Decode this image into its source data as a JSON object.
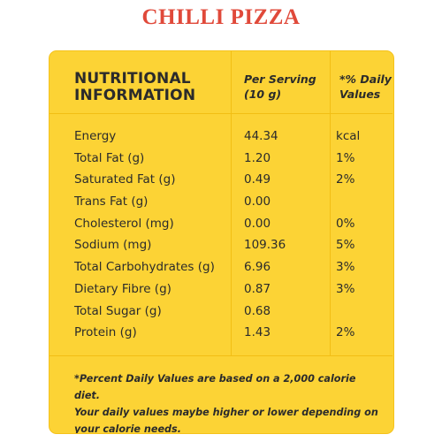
{
  "title": "CHILLI PIZZA",
  "colors": {
    "title": "#e0493a",
    "panel": "#fcd335",
    "divider": "#f2be14",
    "text": "#2b2b2b"
  },
  "table": {
    "header": {
      "nutrition_line1": "NUTRITIONAL",
      "nutrition_line2": "INFORMATION",
      "per_serving_line1": "Per Serving",
      "per_serving_line2": "(10 g)",
      "daily_line1": "*% Daily",
      "daily_line2": "Values"
    },
    "rows": [
      {
        "name": "Energy",
        "value": "44.34",
        "daily": "kcal"
      },
      {
        "name": "Total Fat (g)",
        "value": "1.20",
        "daily": "1%"
      },
      {
        "name": "Saturated Fat (g)",
        "value": "0.49",
        "daily": "2%"
      },
      {
        "name": "Trans Fat (g)",
        "value": "0.00",
        "daily": ""
      },
      {
        "name": "Cholesterol (mg)",
        "value": "0.00",
        "daily": "0%"
      },
      {
        "name": "Sodium (mg)",
        "value": "109.36",
        "daily": "5%"
      },
      {
        "name": "Total Carbohydrates (g)",
        "value": "6.96",
        "daily": "3%"
      },
      {
        "name": "Dietary Fibre (g)",
        "value": "0.87",
        "daily": "3%"
      },
      {
        "name": "Total Sugar (g)",
        "value": "0.68",
        "daily": ""
      },
      {
        "name": "Protein (g)",
        "value": "1.43",
        "daily": "2%"
      }
    ]
  },
  "footnote": {
    "line1": "*Percent Daily Values are based on a 2,000 calorie diet.",
    "line2": "Your daily values maybe higher or lower depending on",
    "line3": "your calorie needs."
  }
}
